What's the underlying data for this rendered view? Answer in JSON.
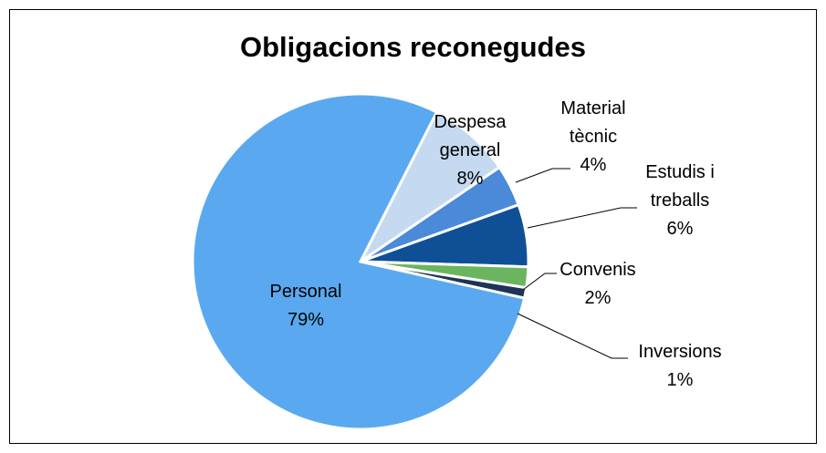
{
  "chart_data": {
    "type": "pie",
    "title": "Obligacions reconegudes",
    "categories": [
      "Despesa general",
      "Material tècnic",
      "Estudis i treballs",
      "Convenis",
      "Inversions",
      "Personal"
    ],
    "values": [
      8,
      4,
      6,
      2,
      1,
      79
    ],
    "value_labels": [
      "8%",
      "4%",
      "6%",
      "2%",
      "1%",
      "79%"
    ],
    "colors": [
      "#c5d9f1",
      "#4a8ad8",
      "#0f4f96",
      "#6cb560",
      "#1c3457",
      "#5aa9f0"
    ]
  }
}
